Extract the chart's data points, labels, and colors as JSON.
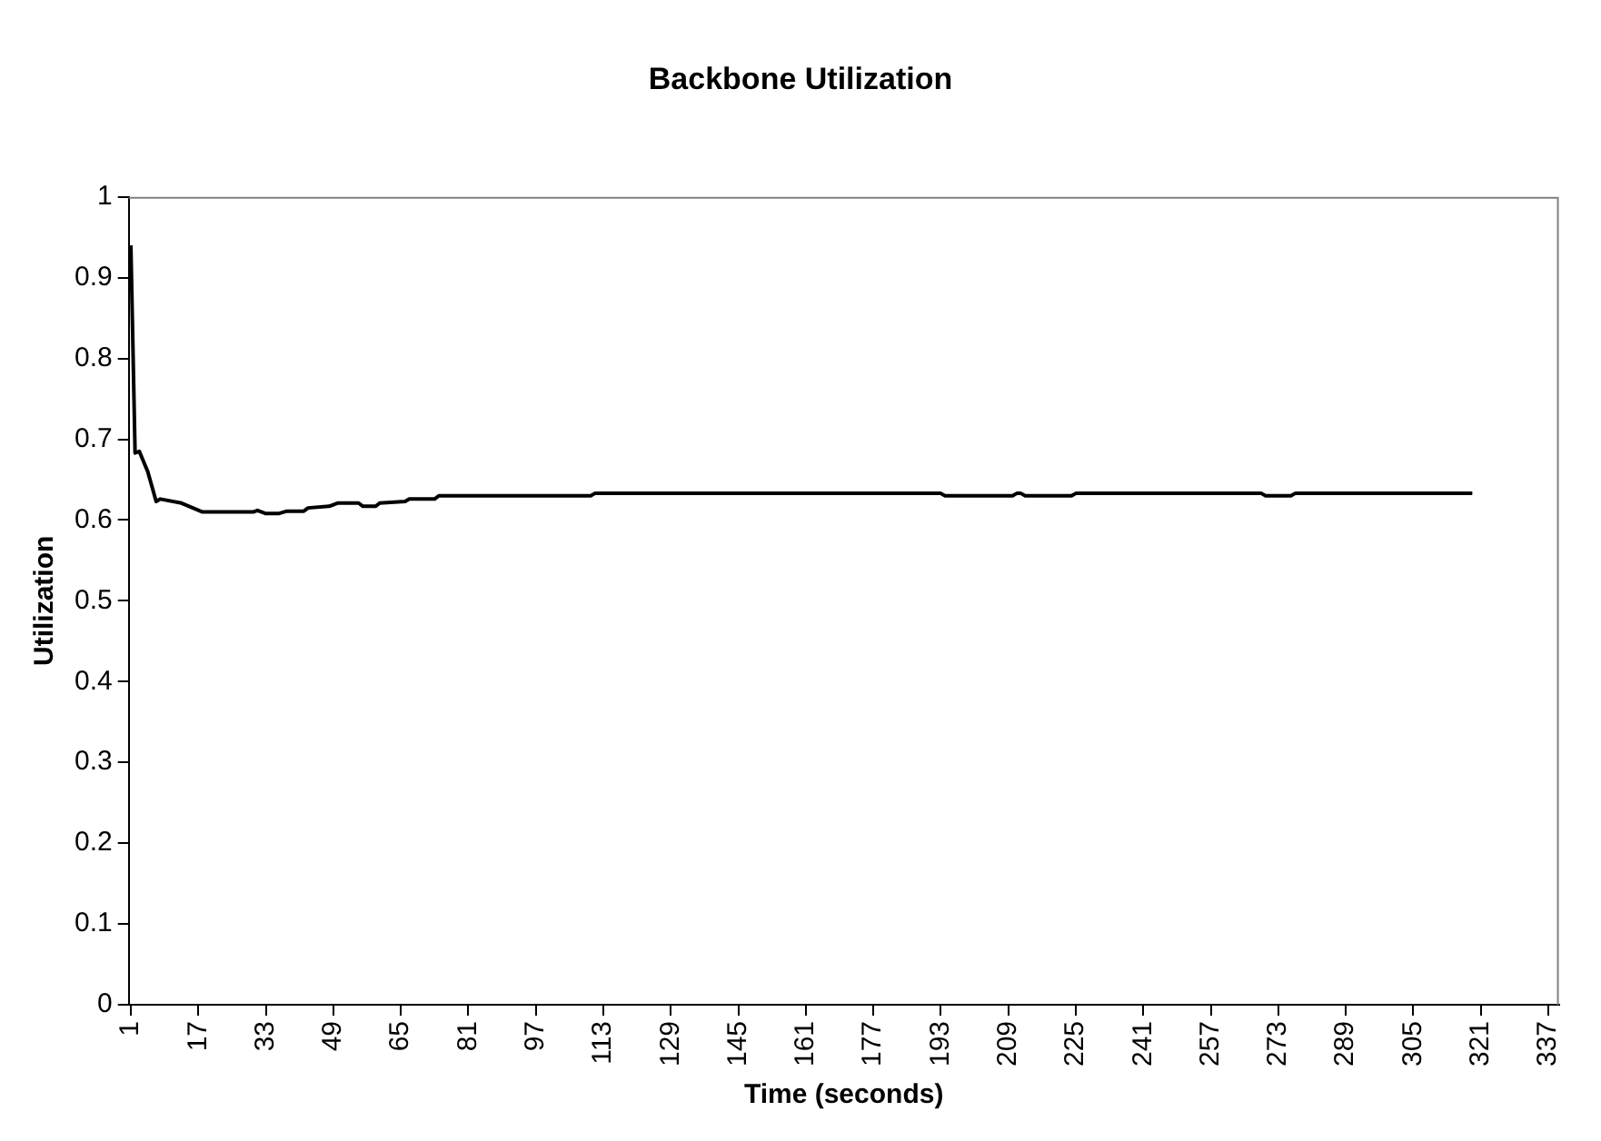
{
  "chart_data": {
    "type": "line",
    "title": "Backbone Utilization",
    "xlabel": "Time (seconds)",
    "ylabel": "Utilization",
    "xlim": [
      0.5,
      339.5
    ],
    "xticks": [
      1,
      17,
      33,
      49,
      65,
      81,
      97,
      113,
      129,
      145,
      161,
      177,
      193,
      209,
      225,
      241,
      257,
      273,
      289,
      305,
      321,
      337
    ],
    "ylim": [
      0,
      1
    ],
    "yticks": [
      0,
      0.1,
      0.2,
      0.3,
      0.4,
      0.5,
      0.6,
      0.7,
      0.8,
      0.9,
      1
    ],
    "grid": false,
    "legend": false,
    "marker": "none",
    "line_style": "solid",
    "series": [
      {
        "color": "#000000",
        "x": [
          1,
          2,
          3,
          5,
          7,
          8,
          13,
          18,
          30,
          31,
          33,
          36,
          38,
          42,
          43,
          48,
          50,
          55,
          56,
          59,
          60,
          66,
          67,
          73,
          74,
          110,
          111,
          193,
          194,
          210,
          211,
          212,
          213,
          224,
          225,
          269,
          270,
          276,
          277,
          319
        ],
        "values": [
          0.94,
          0.683,
          0.685,
          0.66,
          0.623,
          0.626,
          0.621,
          0.61,
          0.61,
          0.612,
          0.608,
          0.608,
          0.611,
          0.611,
          0.615,
          0.617,
          0.621,
          0.621,
          0.617,
          0.617,
          0.621,
          0.623,
          0.626,
          0.626,
          0.63,
          0.63,
          0.633,
          0.633,
          0.63,
          0.63,
          0.633,
          0.633,
          0.63,
          0.63,
          0.633,
          0.633,
          0.63,
          0.63,
          0.633,
          0.633
        ]
      }
    ]
  }
}
